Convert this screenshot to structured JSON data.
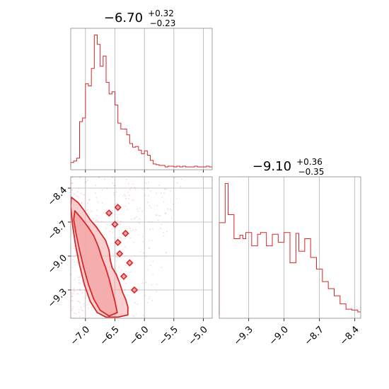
{
  "chart_data": {
    "type": "corner",
    "color": "#d62728",
    "fill_color": "#f4a9a8",
    "grid": true,
    "params": [
      {
        "title_main": "−6.70",
        "title_sup": "+0.32",
        "title_sub": "−0.23",
        "median": -6.7,
        "err_plus": 0.32,
        "err_minus": 0.23
      },
      {
        "title_main": "−9.10",
        "title_sup": "+0.36",
        "title_sub": "−0.35",
        "median": -9.1,
        "err_plus": 0.36,
        "err_minus": 0.35
      }
    ],
    "hist1": {
      "xlim": [
        -7.25,
        -4.85
      ],
      "ticks": [
        -7.0,
        -6.5,
        -6.0,
        -5.5,
        -5.0
      ],
      "tick_labels": [
        "−7.0",
        "−6.5",
        "−6.0",
        "−5.5",
        "−5.0"
      ],
      "bins": [
        -7.25,
        -7.2,
        -7.15,
        -7.1,
        -7.05,
        -7.0,
        -6.95,
        -6.9,
        -6.85,
        -6.8,
        -6.75,
        -6.7,
        -6.65,
        -6.6,
        -6.55,
        -6.5,
        -6.45,
        -6.4,
        -6.35,
        -6.3,
        -6.25,
        -6.2,
        -6.15,
        -6.1,
        -6.05,
        -6.0,
        -5.95,
        -5.9,
        -5.85,
        -5.8,
        -5.75,
        -5.7,
        -5.65,
        -5.6,
        -5.55,
        -5.5,
        -5.45,
        -5.4,
        -5.35,
        -5.3,
        -5.25,
        -5.2,
        -5.15,
        -5.1,
        -5.05,
        -5.0,
        -4.95,
        -4.9,
        -4.85
      ],
      "counts": [
        6,
        8,
        12,
        62,
        67,
        114,
        111,
        135,
        181,
        168,
        138,
        152,
        116,
        100,
        103,
        85,
        60,
        52,
        52,
        44,
        32,
        27,
        28,
        23,
        18,
        22,
        16,
        9,
        4,
        3,
        2,
        2,
        0,
        1,
        1,
        0,
        1,
        0,
        1,
        0,
        0,
        0,
        1,
        0,
        0,
        0,
        1,
        0
      ]
    },
    "hist2": {
      "xlim": [
        -9.55,
        -8.35
      ],
      "ticks": [
        -9.3,
        -9.0,
        -8.7,
        -8.4
      ],
      "tick_labels": [
        "−9.3",
        "−9.0",
        "−8.7",
        "−8.4"
      ],
      "bins": [
        -9.55,
        -9.525,
        -9.5,
        -9.475,
        -9.45,
        -9.425,
        -9.4,
        -9.375,
        -9.35,
        -9.325,
        -9.3,
        -9.275,
        -9.25,
        -9.225,
        -9.2,
        -9.175,
        -9.15,
        -9.125,
        -9.1,
        -9.075,
        -9.05,
        -9.025,
        -9.0,
        -8.975,
        -8.95,
        -8.925,
        -8.9,
        -8.875,
        -8.85,
        -8.825,
        -8.8,
        -8.775,
        -8.75,
        -8.725,
        -8.7,
        -8.675,
        -8.65,
        -8.625,
        -8.6,
        -8.575,
        -8.55,
        -8.525,
        -8.5,
        -8.475,
        -8.45,
        -8.425,
        -8.4,
        -8.375,
        -8.35
      ],
      "counts": [
        104,
        104,
        148,
        113,
        113,
        86,
        86,
        90,
        86,
        93,
        93,
        78,
        78,
        91,
        93,
        93,
        78,
        78,
        91,
        91,
        82,
        82,
        93,
        93,
        59,
        59,
        92,
        72,
        72,
        86,
        86,
        65,
        65,
        52,
        52,
        38,
        38,
        30,
        30,
        22,
        22,
        13,
        13,
        7,
        7,
        6,
        6,
        4
      ]
    },
    "joint": {
      "xlim": [
        -7.25,
        -4.85
      ],
      "ylim": [
        -9.55,
        -8.3
      ],
      "xticks": [
        -7.0,
        -6.5,
        -6.0,
        -5.5,
        -5.0
      ],
      "xtick_labels": [
        "−7.0",
        "−6.5",
        "−6.0",
        "−5.5",
        "−5.0"
      ],
      "yticks": [
        -8.4,
        -8.7,
        -9.0,
        -9.3
      ],
      "ytick_labels": [
        "−8.4",
        "−8.7",
        "−9.0",
        "−9.3"
      ],
      "outer_contour": [
        [
          -7.24,
          -8.48
        ],
        [
          -7.12,
          -8.53
        ],
        [
          -7.02,
          -8.6
        ],
        [
          -6.92,
          -8.68
        ],
        [
          -6.82,
          -8.74
        ],
        [
          -6.74,
          -8.8
        ],
        [
          -6.66,
          -8.86
        ],
        [
          -6.6,
          -8.95
        ],
        [
          -6.58,
          -9.03
        ],
        [
          -6.55,
          -9.1
        ],
        [
          -6.48,
          -9.16
        ],
        [
          -6.42,
          -9.24
        ],
        [
          -6.37,
          -9.32
        ],
        [
          -6.32,
          -9.38
        ],
        [
          -6.28,
          -9.45
        ],
        [
          -6.28,
          -9.52
        ],
        [
          -6.45,
          -9.54
        ],
        [
          -6.65,
          -9.54
        ],
        [
          -6.8,
          -9.5
        ],
        [
          -6.92,
          -9.4
        ],
        [
          -7.02,
          -9.25
        ],
        [
          -7.1,
          -9.08
        ],
        [
          -7.17,
          -8.9
        ],
        [
          -7.22,
          -8.72
        ],
        [
          -7.25,
          -8.56
        ]
      ],
      "inner_contour": [
        [
          -7.18,
          -8.6
        ],
        [
          -7.08,
          -8.66
        ],
        [
          -6.96,
          -8.74
        ],
        [
          -6.86,
          -8.82
        ],
        [
          -6.78,
          -8.92
        ],
        [
          -6.72,
          -9.02
        ],
        [
          -6.66,
          -9.1
        ],
        [
          -6.6,
          -9.2
        ],
        [
          -6.55,
          -9.3
        ],
        [
          -6.5,
          -9.4
        ],
        [
          -6.46,
          -9.5
        ],
        [
          -6.6,
          -9.53
        ],
        [
          -6.75,
          -9.48
        ],
        [
          -6.86,
          -9.38
        ],
        [
          -6.95,
          -9.25
        ],
        [
          -7.03,
          -9.1
        ],
        [
          -7.1,
          -8.95
        ],
        [
          -7.16,
          -8.8
        ],
        [
          -7.2,
          -8.68
        ]
      ],
      "islands": [
        [
          -6.45,
          -8.57
        ],
        [
          -6.5,
          -8.72
        ],
        [
          -6.32,
          -8.8
        ],
        [
          -6.42,
          -8.98
        ],
        [
          -6.25,
          -9.06
        ],
        [
          -6.35,
          -9.18
        ],
        [
          -6.6,
          -8.62
        ],
        [
          -6.17,
          -9.3
        ],
        [
          -6.45,
          -8.88
        ]
      ]
    }
  }
}
